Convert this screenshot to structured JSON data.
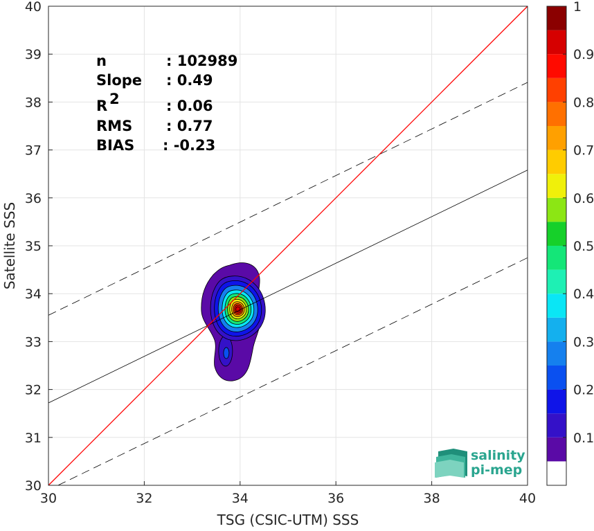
{
  "chart_data": {
    "type": "scatter",
    "subtype": "density contour",
    "xlabel": "TSG (CSIC-UTM) SSS",
    "ylabel": "Satellite SSS",
    "xlim": [
      30,
      40
    ],
    "ylim": [
      30,
      40
    ],
    "xticks": [
      "30",
      "32",
      "34",
      "36",
      "38",
      "40"
    ],
    "yticks": [
      "30",
      "31",
      "32",
      "33",
      "34",
      "35",
      "36",
      "37",
      "38",
      "39",
      "40"
    ],
    "grid": true,
    "stats": [
      {
        "label": "n",
        "value": ": 102989"
      },
      {
        "label": "Slope",
        "value": ": 0.49"
      },
      {
        "label": "R",
        "sup": "2",
        "value": ": 0.06"
      },
      {
        "label": "RMS",
        "value": ": 0.77"
      },
      {
        "label": "BIAS",
        "value": ": -0.23"
      }
    ],
    "identity_line": {
      "x": [
        30,
        40
      ],
      "y": [
        30,
        40
      ],
      "color": "#ff0000"
    },
    "regression_line": {
      "x": [
        30,
        40
      ],
      "y": [
        31.72,
        36.58
      ],
      "color": "#000000"
    },
    "envelope_lines": [
      {
        "x": [
          30,
          40
        ],
        "y": [
          33.55,
          38.41
        ]
      },
      {
        "x": [
          30.2,
          40
        ],
        "y": [
          30,
          34.75
        ]
      }
    ],
    "density_peak": {
      "x": 33.9,
      "y": 33.7
    },
    "colorbar": {
      "range": [
        0,
        1
      ],
      "ticks": [
        "0.1",
        "0.2",
        "0.3",
        "0.4",
        "0.5",
        "0.6",
        "0.7",
        "0.8",
        "0.9",
        "1"
      ],
      "colors": [
        "#ffffff",
        "#5a0aa6",
        "#3411c8",
        "#0f14e8",
        "#0a50f0",
        "#1580ee",
        "#14b0ee",
        "#0ae6f5",
        "#1ef0b4",
        "#14e678",
        "#16d02a",
        "#8ce614",
        "#f0f00a",
        "#ffcc00",
        "#ffa000",
        "#ff7000",
        "#ff4000",
        "#ff0a00",
        "#d60000",
        "#8b0000"
      ]
    }
  },
  "logo": {
    "line1": "salinity",
    "line2": "pi-mep"
  }
}
